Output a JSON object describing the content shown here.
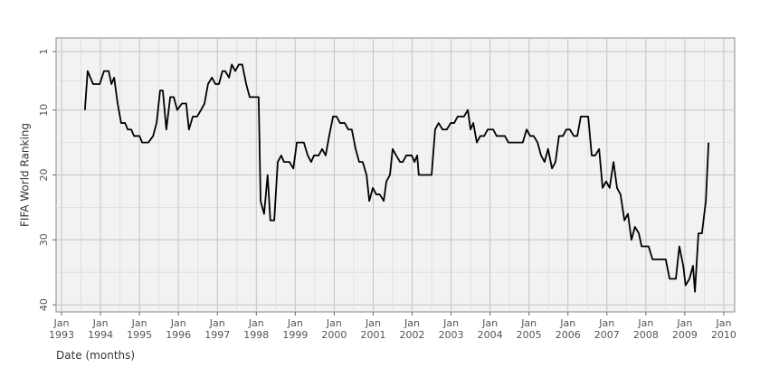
{
  "chart_data": {
    "type": "line",
    "xlabel": "Date (months)",
    "ylabel": "FIFA World Ranking",
    "xlim": [
      1992.86,
      2010.28
    ],
    "ylim": [
      41.1,
      -1.1
    ],
    "xticks": [
      {
        "value": 1993,
        "label": "Jan 1993"
      },
      {
        "value": 1994,
        "label": "Jan 1994"
      },
      {
        "value": 1995,
        "label": "Jan 1995"
      },
      {
        "value": 1996,
        "label": "Jan 1996"
      },
      {
        "value": 1997,
        "label": "Jan 1997"
      },
      {
        "value": 1998,
        "label": "Jan 1998"
      },
      {
        "value": 1999,
        "label": "Jan 1999"
      },
      {
        "value": 2000,
        "label": "Jan 2000"
      },
      {
        "value": 2001,
        "label": "Jan 2001"
      },
      {
        "value": 2002,
        "label": "Jan 2002"
      },
      {
        "value": 2003,
        "label": "Jan 2003"
      },
      {
        "value": 2004,
        "label": "Jan 2004"
      },
      {
        "value": 2005,
        "label": "Jan 2005"
      },
      {
        "value": 2006,
        "label": "Jan 2006"
      },
      {
        "value": 2007,
        "label": "Jan 2007"
      },
      {
        "value": 2008,
        "label": "Jan 2008"
      },
      {
        "value": 2009,
        "label": "Jan 2009"
      },
      {
        "value": 2010,
        "label": "Jan 2010"
      }
    ],
    "yticks": [
      1,
      10,
      20,
      30,
      40
    ],
    "grid": true,
    "series": [
      {
        "name": "FIFA World Ranking",
        "color": "#000000",
        "x": [
          1993.6,
          1993.67,
          1993.81,
          1993.98,
          1994.09,
          1994.21,
          1994.28,
          1994.35,
          1994.44,
          1994.53,
          1994.63,
          1994.7,
          1994.79,
          1994.86,
          1995.0,
          1995.07,
          1995.23,
          1995.35,
          1995.44,
          1995.53,
          1995.6,
          1995.69,
          1995.79,
          1995.88,
          1995.97,
          1996.09,
          1996.2,
          1996.27,
          1996.37,
          1996.48,
          1996.58,
          1996.67,
          1996.76,
          1996.86,
          1996.95,
          1997.04,
          1997.13,
          1997.2,
          1997.3,
          1997.37,
          1997.46,
          1997.55,
          1997.64,
          1997.74,
          1997.83,
          1997.92,
          1998.06,
          1998.11,
          1998.2,
          1998.29,
          1998.36,
          1998.46,
          1998.55,
          1998.64,
          1998.71,
          1998.85,
          1998.95,
          1999.04,
          1999.22,
          1999.32,
          1999.41,
          1999.48,
          1999.6,
          1999.69,
          1999.78,
          1999.87,
          1999.97,
          2000.06,
          2000.15,
          2000.27,
          2000.36,
          2000.45,
          2000.55,
          2000.64,
          2000.73,
          2000.83,
          2000.9,
          2000.99,
          2001.08,
          2001.17,
          2001.27,
          2001.34,
          2001.43,
          2001.5,
          2001.59,
          2001.69,
          2001.76,
          2001.85,
          2001.99,
          2002.06,
          2002.13,
          2002.17,
          2002.34,
          2002.5,
          2002.59,
          2002.68,
          2002.78,
          2002.89,
          2002.99,
          2003.08,
          2003.17,
          2003.33,
          2003.43,
          2003.5,
          2003.57,
          2003.66,
          2003.75,
          2003.85,
          2003.94,
          2004.08,
          2004.17,
          2004.38,
          2004.47,
          2004.75,
          2004.84,
          2004.94,
          2005.03,
          2005.12,
          2005.22,
          2005.31,
          2005.4,
          2005.49,
          2005.59,
          2005.68,
          2005.77,
          2005.87,
          2005.96,
          2006.05,
          2006.15,
          2006.24,
          2006.33,
          2006.52,
          2006.61,
          2006.7,
          2006.8,
          2006.89,
          2006.98,
          2007.07,
          2007.17,
          2007.26,
          2007.35,
          2007.45,
          2007.54,
          2007.63,
          2007.72,
          2007.82,
          2007.89,
          2008.07,
          2008.17,
          2008.51,
          2008.61,
          2008.77,
          2008.86,
          2008.96,
          2009.02,
          2009.12,
          2009.21,
          2009.26,
          2009.35,
          2009.44,
          2009.54,
          2009.61
        ],
        "values": [
          10,
          4,
          6,
          6,
          4,
          4,
          6,
          5,
          9,
          12,
          12,
          13,
          13,
          14,
          14,
          15,
          15,
          14,
          12,
          7,
          7,
          13,
          8,
          8,
          10,
          9,
          9,
          13,
          11,
          11,
          10,
          9,
          6,
          5,
          6,
          6,
          4,
          4,
          5,
          3,
          4,
          3,
          3,
          6,
          8,
          8,
          8,
          24,
          26,
          20,
          27,
          27,
          18,
          17,
          18,
          18,
          19,
          15,
          15,
          17,
          18,
          17,
          17,
          16,
          17,
          14,
          11,
          11,
          12,
          12,
          13,
          13,
          16,
          18,
          18,
          20,
          24,
          22,
          23,
          23,
          24,
          21,
          20,
          16,
          17,
          18,
          18,
          17,
          17,
          18,
          17,
          20,
          20,
          20,
          13,
          12,
          13,
          13,
          12,
          12,
          11,
          11,
          10,
          13,
          12,
          15,
          14,
          14,
          13,
          13,
          14,
          14,
          15,
          15,
          15,
          13,
          14,
          14,
          15,
          17,
          18,
          16,
          19,
          18,
          14,
          14,
          13,
          13,
          14,
          14,
          11,
          11,
          17,
          17,
          16,
          22,
          21,
          22,
          18,
          22,
          23,
          27,
          26,
          30,
          28,
          29,
          31,
          31,
          33,
          33,
          36,
          36,
          31,
          34,
          37,
          36,
          34,
          38,
          29,
          29,
          24,
          15
        ]
      }
    ]
  }
}
